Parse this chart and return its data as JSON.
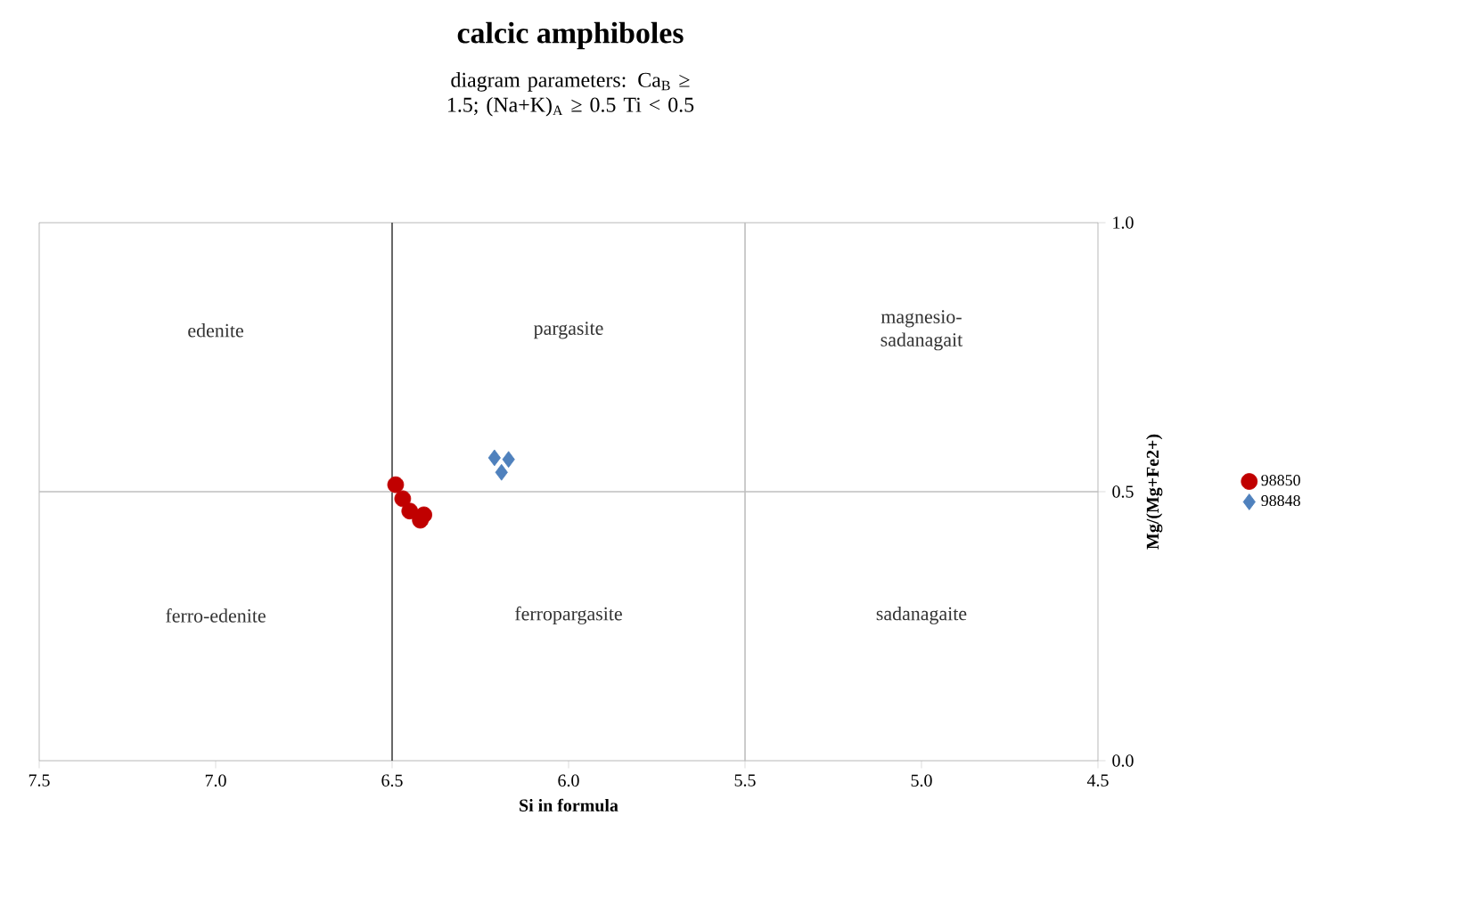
{
  "chart_data": {
    "type": "scatter",
    "title": "calcic amphiboles",
    "subtitle": "diagram parameters: Ca$_{B}$ ≥ 1.5; (Na+K)$_{A}$ ≥ 0.5 Ti < 0.5",
    "xlabel": "Si in formula",
    "ylabel": "Mg/(Mg+Fe2+)",
    "xlim": [
      7.5,
      4.5
    ],
    "ylim": [
      0.0,
      1.0
    ],
    "xticks": [
      7.5,
      {
        "value": 7.0,
        "label": "7.0"
      },
      6.5,
      {
        "value": 6.0,
        "label": "6.0"
      },
      5.5,
      {
        "value": 5.0,
        "label": "5.0"
      },
      4.5
    ],
    "yticks": [
      {
        "value": 0.0,
        "label": "0.0"
      },
      0.5,
      {
        "value": 1.0,
        "label": "1.0"
      }
    ],
    "ref_lines": [
      {
        "axis": "x",
        "value": 6.5,
        "color": "#404040"
      },
      {
        "axis": "x",
        "value": 5.5,
        "color": "#bfbfbf"
      },
      {
        "axis": "y",
        "value": 0.5,
        "color": "#bfbfbf"
      }
    ],
    "annotations": [
      "edenite",
      "pargasite",
      "magnesio-sadanagait",
      "ferro-edenite",
      "ferropargasite",
      "sadanagaite"
    ],
    "legend": "right",
    "series": [
      {
        "name": "98850",
        "color": "#c00000",
        "marker": "circle",
        "x": [
          6.49,
          6.47,
          6.45,
          6.41,
          6.42
        ],
        "values": [
          0.513,
          0.487,
          0.464,
          0.457,
          0.447
        ]
      },
      {
        "name": "98848",
        "color": "#4f81bd",
        "marker": "diamond",
        "x": [
          6.21,
          6.17,
          6.19
        ],
        "values": [
          0.563,
          0.56,
          0.536
        ]
      }
    ]
  }
}
